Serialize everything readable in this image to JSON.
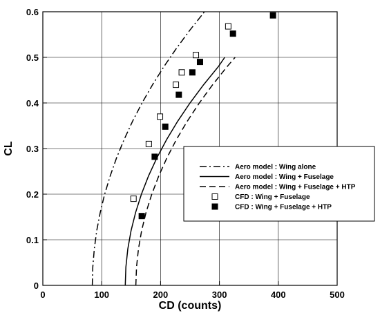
{
  "chart_data": {
    "type": "line",
    "xlabel": "CD (counts)",
    "ylabel": "CL",
    "xlim": [
      0,
      500
    ],
    "ylim": [
      0,
      0.6
    ],
    "xticks": [
      "0",
      "100",
      "200",
      "300",
      "400",
      "500"
    ],
    "yticks": [
      "0",
      "0.1",
      "0.2",
      "0.3",
      "0.4",
      "0.5",
      "0.6"
    ],
    "grid": true,
    "legend_position": "center-right",
    "series": [
      {
        "name": "Aero model : Wing alone",
        "kind": "line",
        "style": "dash-dot",
        "color": "#000000",
        "x": [
          84,
          84.9,
          87.4,
          91.6,
          97.5,
          105.1,
          114.4,
          125.4,
          138.1,
          152.5,
          168.6,
          186.4,
          205.9,
          227.1,
          250.0,
          274.6
        ],
        "y": [
          0,
          0.04,
          0.08,
          0.12,
          0.16,
          0.2,
          0.24,
          0.28,
          0.32,
          0.36,
          0.4,
          0.44,
          0.48,
          0.52,
          0.56,
          0.6
        ]
      },
      {
        "name": "Aero model : Wing + Fuselage",
        "kind": "line",
        "style": "solid",
        "color": "#000000",
        "x": [
          140,
          141.1,
          144.4,
          149.9,
          157.6,
          167.5,
          179.6,
          193.9,
          210.4,
          229.1,
          250.0,
          273.1,
          298.4,
          309.0
        ],
        "y": [
          0,
          0.04,
          0.08,
          0.12,
          0.16,
          0.2,
          0.24,
          0.28,
          0.32,
          0.36,
          0.4,
          0.44,
          0.48,
          0.5
        ]
      },
      {
        "name": "Aero model : Wing + Fuselage + HTP",
        "kind": "line",
        "style": "dashed",
        "color": "#000000",
        "x": [
          158,
          159.1,
          162.4,
          167.8,
          175.4,
          185.1,
          196.9,
          210.9,
          227.0,
          245.4,
          265.8,
          288.5,
          313.3,
          326.6
        ],
        "y": [
          0,
          0.04,
          0.08,
          0.12,
          0.16,
          0.2,
          0.24,
          0.28,
          0.32,
          0.36,
          0.4,
          0.44,
          0.48,
          0.5
        ]
      },
      {
        "name": "CFD : Wing + Fuselage",
        "kind": "marker",
        "marker": "open-square",
        "color": "#000000",
        "x": [
          154,
          180,
          199,
          226,
          236,
          260,
          315
        ],
        "y": [
          0.19,
          0.31,
          0.37,
          0.44,
          0.467,
          0.505,
          0.568
        ]
      },
      {
        "name": "CFD : Wing + Fuselage + HTP",
        "kind": "marker",
        "marker": "filled-square",
        "color": "#000000",
        "x": [
          168,
          190,
          208,
          231,
          254,
          267,
          323,
          391
        ],
        "y": [
          0.152,
          0.282,
          0.348,
          0.418,
          0.467,
          0.49,
          0.552,
          0.592
        ]
      }
    ]
  }
}
